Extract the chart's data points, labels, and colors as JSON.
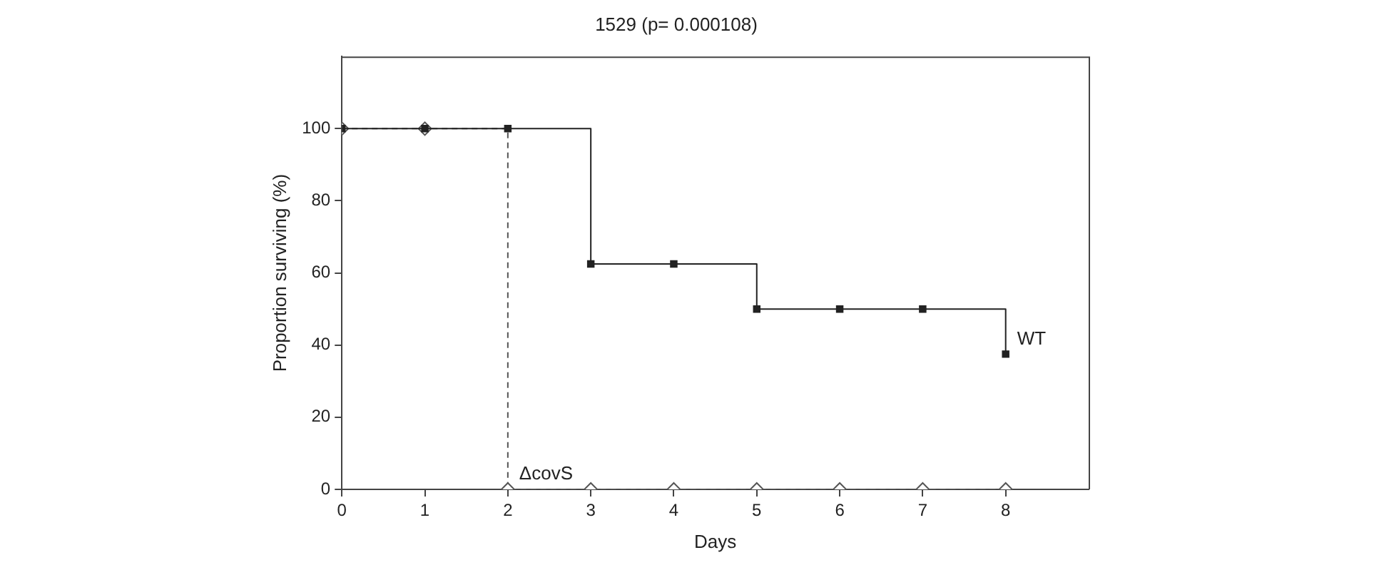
{
  "chart_data": {
    "type": "step",
    "title": "1529 (p= 0.000108)",
    "xlabel": "Days",
    "ylabel": "Proportion surviving (%)",
    "x": [
      0,
      1,
      2,
      3,
      4,
      5,
      6,
      7,
      8
    ],
    "series": [
      {
        "name": "ΔcovS",
        "color": "#555555",
        "values": [
          100,
          100,
          0,
          0,
          0,
          0,
          0,
          0,
          0
        ],
        "marker": "diamond",
        "line_style": "dashed"
      },
      {
        "name": "WT",
        "color": "#222222",
        "values": [
          100,
          100,
          100,
          62.5,
          62.5,
          50,
          50,
          50,
          37.5
        ],
        "marker": "square",
        "line_style": "solid"
      }
    ],
    "xlim": [
      0,
      9
    ],
    "xticks": [
      0,
      1,
      2,
      3,
      4,
      5,
      6,
      7,
      8
    ],
    "ylim": [
      0,
      120
    ],
    "yticks": [
      0,
      20,
      40,
      60,
      80,
      100
    ],
    "grid": false,
    "legend": false
  }
}
